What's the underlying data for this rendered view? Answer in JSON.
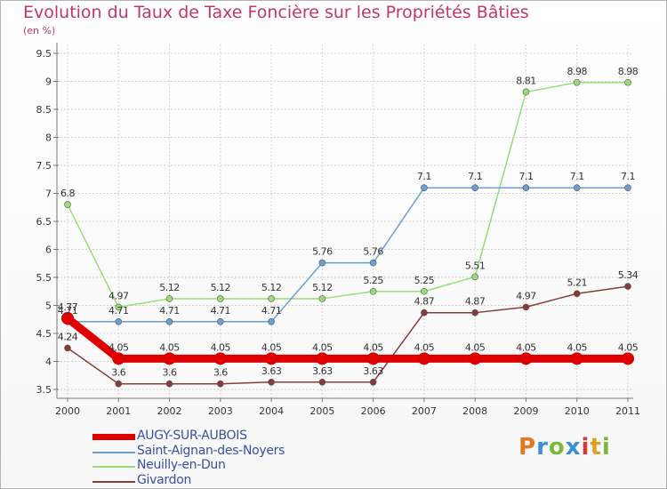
{
  "title": "Evolution du Taux de Taxe Foncière sur les Propriétés Bâties",
  "subtitle": "(en %)",
  "logo": {
    "letters": [
      "P",
      "r",
      "o",
      "x",
      "i",
      "t",
      "i"
    ],
    "colors": [
      "#e07a1f",
      "#3a8fd6",
      "#7ab93a",
      "#3a8fd6",
      "#d23a3a",
      "#e0a01f",
      "#7ab93a"
    ]
  },
  "chart_data": {
    "type": "line",
    "x": [
      "2000",
      "2001",
      "2002",
      "2003",
      "2004",
      "2005",
      "2006",
      "2007",
      "2008",
      "2009",
      "2010",
      "2011"
    ],
    "y_ticks": [
      "3.5",
      "4",
      "4.5",
      "5",
      "5.5",
      "6",
      "6.5",
      "7",
      "7.5",
      "8",
      "8.5",
      "9",
      "9.5"
    ],
    "ylim": [
      3.5,
      9.5
    ],
    "series": [
      {
        "name": "AUGY-SUR-AUBOIS",
        "color": "#e00000",
        "values": [
          4.77,
          4.05,
          4.05,
          4.05,
          4.05,
          4.05,
          4.05,
          4.05,
          4.05,
          4.05,
          4.05,
          4.05
        ],
        "labels": [
          "4.77",
          "4.05",
          "4.05",
          "4.05",
          "4.05",
          "4.05",
          "4.05",
          "4.05",
          "4.05",
          "4.05",
          "4.05",
          "4.05"
        ]
      },
      {
        "name": "Saint-Aignan-des-Noyers",
        "color": "#6a9fd4",
        "values": [
          4.71,
          4.71,
          4.71,
          4.71,
          4.71,
          5.76,
          5.76,
          7.1,
          7.1,
          7.1,
          7.1,
          7.1
        ],
        "labels": [
          "4.71",
          "4.71",
          "4.71",
          "4.71",
          "4.71",
          "5.76",
          "5.76",
          "7.1",
          "7.1",
          "7.1",
          "7.1",
          "7.1"
        ]
      },
      {
        "name": "Neuilly-en-Dun",
        "color": "#99dd77",
        "values": [
          6.8,
          4.97,
          5.12,
          5.12,
          5.12,
          5.12,
          5.25,
          5.25,
          5.51,
          8.81,
          8.98,
          8.98
        ],
        "labels": [
          "6.8",
          "4.97",
          "5.12",
          "5.12",
          "5.12",
          "5.12",
          "5.25",
          "5.25",
          "5.51",
          "8.81",
          "8.98",
          "8.98"
        ]
      },
      {
        "name": "Givardon",
        "color": "#8b3a3a",
        "values": [
          4.24,
          3.6,
          3.6,
          3.6,
          3.63,
          3.63,
          3.63,
          4.87,
          4.87,
          4.97,
          5.21,
          5.34
        ],
        "labels": [
          "4.24",
          "3.6",
          "3.6",
          "3.6",
          "3.63",
          "3.63",
          "3.63",
          "4.87",
          "4.87",
          "4.97",
          "5.21",
          "5.34"
        ]
      }
    ]
  }
}
